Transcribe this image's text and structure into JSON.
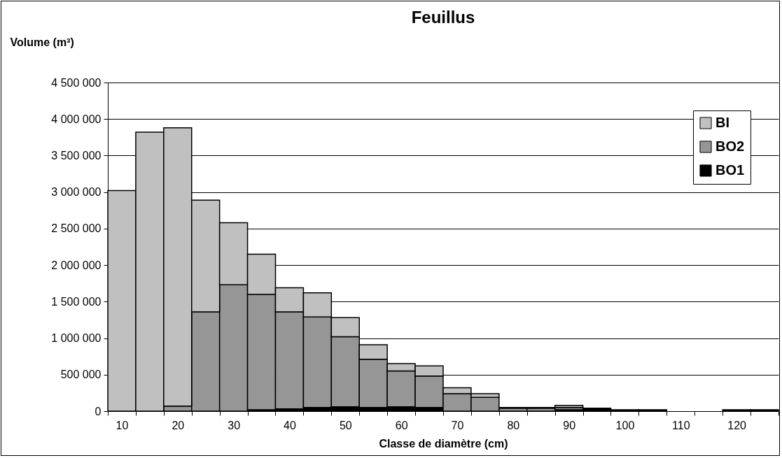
{
  "chart_data": {
    "type": "bar",
    "title": "Feuillus",
    "xlabel": "Classe de diamètre (cm)",
    "ylabel": "Volume (m³)",
    "categories": [
      "10",
      null,
      "20",
      null,
      "30",
      null,
      "40",
      null,
      "50",
      null,
      "60",
      null,
      "70",
      null,
      "80",
      null,
      "90",
      null,
      "100",
      null,
      "110",
      null,
      "120",
      null
    ],
    "stacked": true,
    "series": [
      {
        "name": "BO1",
        "color": "#000000",
        "values": [
          0,
          0,
          0,
          0,
          0,
          20000,
          30000,
          50000,
          60000,
          50000,
          60000,
          50000,
          null,
          null,
          null,
          null,
          20000,
          40000,
          20000,
          20000,
          0,
          0,
          20000,
          20000
        ]
      },
      {
        "name": "BO2",
        "color": "#969696",
        "values": [
          0,
          0,
          70000,
          1360000,
          1730000,
          1580000,
          1330000,
          1240000,
          960000,
          660000,
          490000,
          430000,
          240000,
          190000,
          40000,
          40000,
          30000,
          0,
          0,
          0,
          0,
          0,
          0,
          0
        ]
      },
      {
        "name": "BI",
        "color": "#c0c0c0",
        "values": [
          3020000,
          3820000,
          3810000,
          1530000,
          850000,
          550000,
          330000,
          330000,
          260000,
          200000,
          100000,
          140000,
          80000,
          50000,
          10000,
          10000,
          30000,
          0,
          0,
          0,
          0,
          0,
          0,
          0
        ]
      }
    ],
    "ylim": [
      0,
      4500000
    ],
    "yticks": [
      {
        "value": 0,
        "label": "0"
      },
      {
        "value": 500000,
        "label": "500 000"
      },
      {
        "value": 1000000,
        "label": "1 000 000"
      },
      {
        "value": 1500000,
        "label": "1 500 000"
      },
      {
        "value": 2000000,
        "label": "2 000 000"
      },
      {
        "value": 2500000,
        "label": "2 500 000"
      },
      {
        "value": 3000000,
        "label": "3 000 000"
      },
      {
        "value": 3500000,
        "label": "3 500 000"
      },
      {
        "value": 4000000,
        "label": "4 000 000"
      },
      {
        "value": 4500000,
        "label": "4 500 000"
      }
    ],
    "grid": "y",
    "legend": "top right"
  }
}
